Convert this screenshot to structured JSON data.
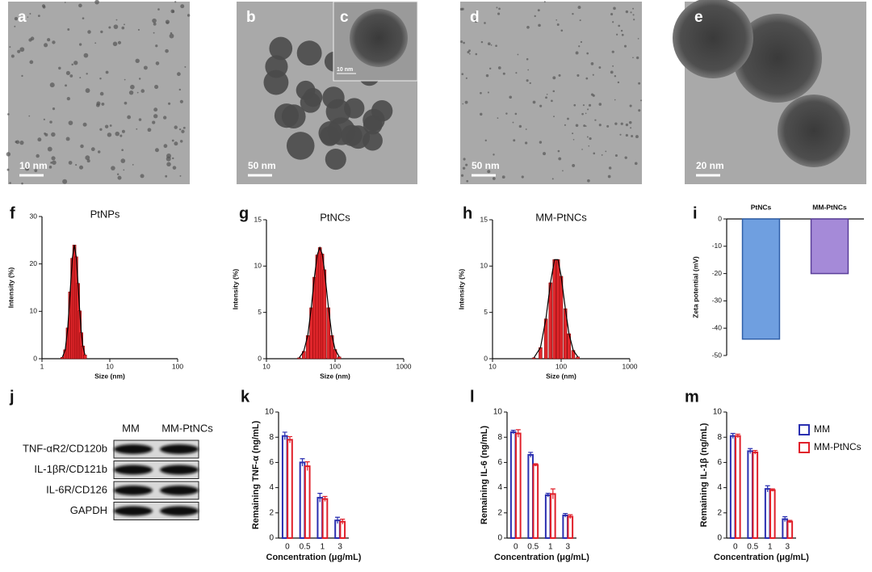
{
  "images": [
    {
      "label": "a",
      "scale": "10 nm"
    },
    {
      "label": "b",
      "scale": "50 nm"
    },
    {
      "label": "c",
      "scale": "10 nm"
    },
    {
      "label": "d",
      "scale": "50 nm"
    },
    {
      "label": "e",
      "scale": "20 nm"
    }
  ],
  "blot": {
    "label": "j",
    "columns": [
      "MM",
      "MM-PtNCs"
    ],
    "rows": [
      "TNF-αR2/CD120b",
      "IL-1βR/CD121b",
      "IL-6R/CD126",
      "GAPDH"
    ]
  },
  "chart_data": [
    {
      "type": "bar",
      "label": "f",
      "title": "PtNPs",
      "xlabel": "Size (nm)",
      "ylabel": "Intensity (%)",
      "xscale": "log",
      "xlim": [
        1,
        100
      ],
      "xticks": [
        1,
        10,
        100
      ],
      "ylim": [
        0,
        30
      ],
      "yticks": [
        0,
        10,
        20,
        30
      ],
      "x": [
        2.0,
        2.2,
        2.4,
        2.6,
        2.8,
        3.0,
        3.2,
        3.4,
        3.6,
        3.8,
        4.0,
        4.3
      ],
      "values": [
        0.3,
        1.9,
        6.5,
        14.1,
        21.2,
        24,
        21.5,
        15.9,
        10.1,
        5.5,
        2.7,
        0.8
      ],
      "color": "#e0262b",
      "line_color": "#000000"
    },
    {
      "type": "bar",
      "label": "g",
      "title": "PtNCs",
      "xlabel": "Size (nm)",
      "ylabel": "Intensity (%)",
      "xscale": "log",
      "xlim": [
        10,
        1000
      ],
      "xticks": [
        10,
        100,
        1000
      ],
      "ylim": [
        0,
        15
      ],
      "yticks": [
        0,
        5,
        10,
        15
      ],
      "x": [
        30,
        35,
        40,
        45,
        50,
        55,
        60,
        65,
        70,
        80,
        90,
        100,
        115
      ],
      "values": [
        0.1,
        0.8,
        2.5,
        5.5,
        8.8,
        11.2,
        12,
        11.3,
        9.6,
        5.5,
        2.5,
        1.0,
        0.2
      ],
      "color": "#e0262b",
      "line_color": "#000000"
    },
    {
      "type": "bar",
      "label": "h",
      "title": "MM-PtNCs",
      "xlabel": "Size (nm)",
      "ylabel": "Intensity (%)",
      "xscale": "log",
      "xlim": [
        10,
        1000
      ],
      "xticks": [
        10,
        100,
        1000
      ],
      "ylim": [
        0,
        15
      ],
      "yticks": [
        0,
        5,
        10,
        15
      ],
      "x": [
        40,
        50,
        60,
        70,
        80,
        90,
        100,
        115,
        130,
        150,
        175
      ],
      "values": [
        0.1,
        1.2,
        4.3,
        8.2,
        10.7,
        10.7,
        8.9,
        5.4,
        2.7,
        0.9,
        0.2
      ],
      "color": "#e0262b",
      "line_color": "#000000"
    },
    {
      "type": "bar",
      "label": "i",
      "ylabel": "Zeta potential (mV)",
      "categories": [
        "PtNCs",
        "MM-PtNCs"
      ],
      "values": [
        -44,
        -20
      ],
      "colors": [
        "#6f9fe0",
        "#a58ad8"
      ],
      "edge_colors": [
        "#2f5fa8",
        "#5b3f9a"
      ],
      "ylim": [
        -50,
        0
      ],
      "yticks": [
        0,
        -10,
        -20,
        -30,
        -40,
        -50
      ]
    },
    {
      "type": "bar",
      "label": "k",
      "xlabel": "Concentration (μg/mL)",
      "ylabel": "Remaining TNF-α (ng/mL)",
      "categories": [
        "0",
        "0.5",
        "1",
        "3"
      ],
      "ylim": [
        0,
        10
      ],
      "yticks": [
        0,
        2,
        4,
        6,
        8,
        10
      ],
      "series": [
        {
          "color": "#2a2fb0",
          "values": [
            8.1,
            6.0,
            3.2,
            1.4
          ],
          "errors": [
            0.3,
            0.3,
            0.35,
            0.25
          ]
        },
        {
          "color": "#e0202a",
          "values": [
            7.8,
            5.7,
            3.1,
            1.3
          ],
          "errors": [
            0.25,
            0.35,
            0.2,
            0.2
          ]
        }
      ]
    },
    {
      "type": "bar",
      "label": "l",
      "xlabel": "Concentration (μg/mL)",
      "ylabel": "Remaining IL-6 (ng/mL)",
      "categories": [
        "0",
        "0.5",
        "1",
        "3"
      ],
      "ylim": [
        0,
        10
      ],
      "yticks": [
        0,
        2,
        4,
        6,
        8,
        10
      ],
      "series": [
        {
          "color": "#2a2fb0",
          "values": [
            8.4,
            6.6,
            3.4,
            1.8
          ],
          "errors": [
            0.15,
            0.2,
            0.15,
            0.15
          ]
        },
        {
          "color": "#e0202a",
          "values": [
            8.3,
            5.8,
            3.5,
            1.7
          ],
          "errors": [
            0.3,
            0.1,
            0.4,
            0.15
          ]
        }
      ]
    },
    {
      "type": "bar",
      "label": "m",
      "xlabel": "Concentration (μg/mL)",
      "ylabel": "Remaining IL-1β (ng/mL)",
      "categories": [
        "0",
        "0.5",
        "1",
        "3"
      ],
      "ylim": [
        0,
        10
      ],
      "yticks": [
        0,
        2,
        4,
        6,
        8,
        10
      ],
      "legend": "top-right",
      "series": [
        {
          "name": "MM",
          "color": "#2a2fb0",
          "values": [
            8.1,
            6.9,
            3.9,
            1.5
          ],
          "errors": [
            0.2,
            0.2,
            0.25,
            0.2
          ]
        },
        {
          "name": "MM-PtNCs",
          "color": "#e0202a",
          "values": [
            8.1,
            6.8,
            3.8,
            1.3
          ],
          "errors": [
            0.15,
            0.15,
            0.1,
            0.1
          ]
        }
      ]
    }
  ]
}
